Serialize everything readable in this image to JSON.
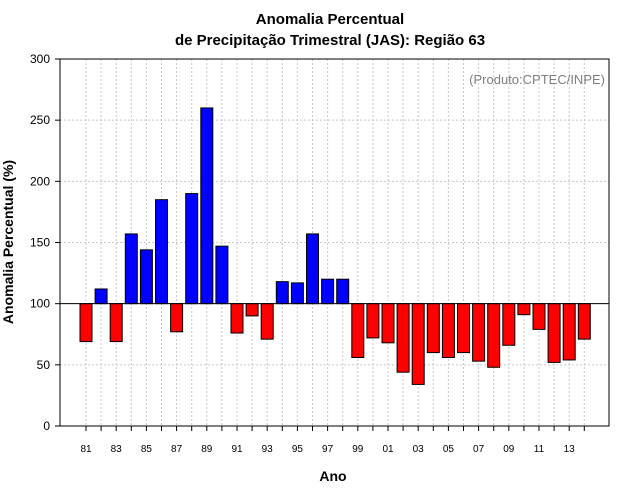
{
  "chart_data": {
    "type": "bar",
    "title": [
      "Anomalia Percentual",
      "de Precipitação Trimestral (JAS): Região 63"
    ],
    "ylabel": "Anomalia Percentual (%)",
    "xlabel": "Ano",
    "annotation": "(Produto:CPTEC/INPE)",
    "ylim": [
      0,
      300
    ],
    "yticks": [
      0,
      50,
      100,
      150,
      200,
      250,
      300
    ],
    "baseline": 100,
    "grid": true,
    "categories": [
      "81",
      "82",
      "83",
      "84",
      "85",
      "86",
      "87",
      "88",
      "89",
      "90",
      "91",
      "92",
      "93",
      "94",
      "95",
      "96",
      "97",
      "98",
      "99",
      "00",
      "01",
      "02",
      "03",
      "04",
      "05",
      "06",
      "07",
      "08",
      "09",
      "10",
      "11",
      "12",
      "13",
      "14"
    ],
    "xtick_labels": [
      "81",
      "83",
      "85",
      "87",
      "89",
      "91",
      "93",
      "95",
      "97",
      "99",
      "01",
      "03",
      "05",
      "07",
      "09",
      "11",
      "13"
    ],
    "values": [
      69,
      112,
      69,
      157,
      144,
      185,
      77,
      190,
      260,
      147,
      76,
      90,
      71,
      118,
      117,
      157,
      120,
      120,
      56,
      72,
      68,
      44,
      34,
      60,
      56,
      60,
      53,
      48,
      66,
      91,
      79,
      52,
      54,
      71
    ],
    "colors": {
      "above": "#0000ff",
      "below": "#ff0000"
    }
  }
}
